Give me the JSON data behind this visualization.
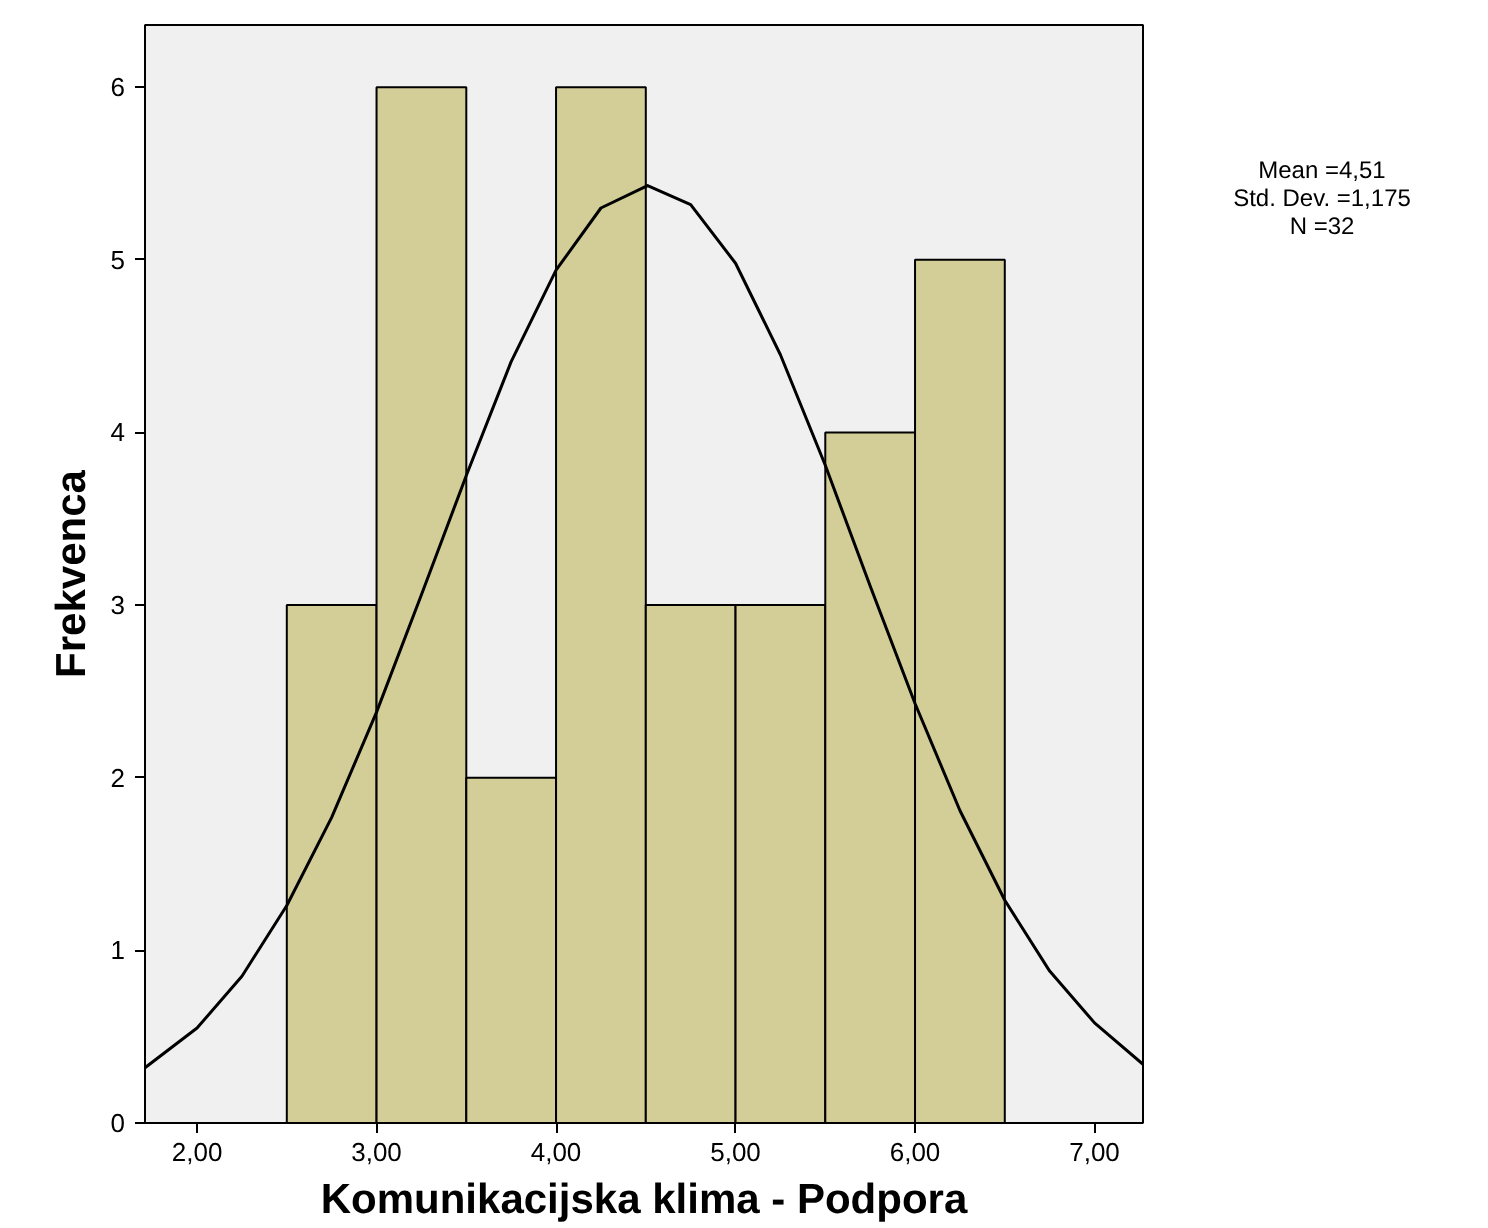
{
  "chart_data": {
    "type": "histogram",
    "xlabel": "Komunikacijska klima - Podpora",
    "ylabel": "Frekvenca",
    "bins": [
      2.5,
      3.0,
      3.5,
      4.0,
      4.5,
      5.0,
      5.5,
      6.0,
      6.5
    ],
    "values": [
      3,
      6,
      2,
      6,
      3,
      3,
      4,
      5
    ],
    "color": "#d3ce97",
    "series": [
      {
        "type": "line",
        "color": "#000000",
        "x": [
          1.71,
          2.0,
          2.25,
          2.5,
          2.75,
          3.0,
          3.25,
          3.5,
          3.75,
          4.0,
          4.25,
          4.51,
          4.75,
          5.0,
          5.25,
          5.5,
          5.75,
          6.0,
          6.25,
          6.5,
          6.75,
          7.0,
          7.27
        ],
        "values": [
          0.32,
          0.55,
          0.85,
          1.26,
          1.77,
          2.38,
          3.06,
          3.75,
          4.41,
          4.94,
          5.3,
          5.43,
          5.32,
          4.98,
          4.45,
          3.81,
          3.11,
          2.43,
          1.81,
          1.29,
          0.88,
          0.58,
          0.34
        ]
      }
    ],
    "xlim": [
      1.71,
      7.27
    ],
    "ylim": [
      0,
      6.36
    ],
    "xticks": [
      {
        "value": 2,
        "label": "2,00"
      },
      {
        "value": 3,
        "label": "3,00"
      },
      {
        "value": 4,
        "label": "4,00"
      },
      {
        "value": 5,
        "label": "5,00"
      },
      {
        "value": 6,
        "label": "6,00"
      },
      {
        "value": 7,
        "label": "7,00"
      }
    ],
    "yticks": [
      0,
      1,
      2,
      3,
      4,
      5,
      6
    ],
    "grid": false,
    "annotations": [
      "Mean =4,51",
      "Std. Dev. =1,175",
      "N =32"
    ]
  }
}
